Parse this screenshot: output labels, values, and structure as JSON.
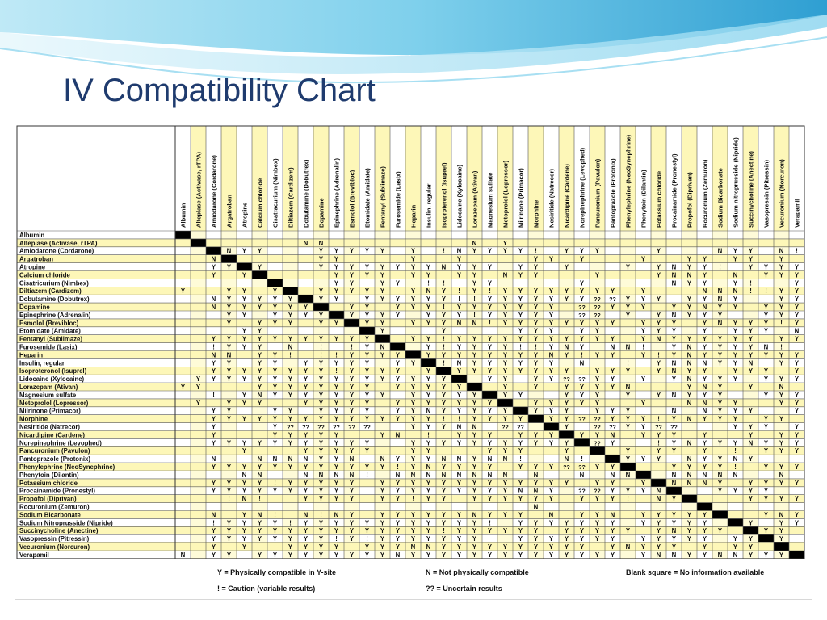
{
  "slide": {
    "title": "IV Compatibility Chart"
  },
  "colors": {
    "title": "#1f3b6e",
    "highlight": "#fdf7b8",
    "diagonal": "#000000",
    "grid": "#555555",
    "banner_light": "#c9ecf7",
    "banner_mid": "#6fc6e6",
    "banner_dark": "#2f9fd2"
  },
  "chart_data": {
    "type": "table",
    "drugs": [
      "Albumin",
      "Alteplase (Activase, rTPA)",
      "Amiodarone (Cordarone)",
      "Argatroban",
      "Atropine",
      "Calcium chloride",
      "Cisatricurium (Nimbex)",
      "Diltiazem (Cardizem)",
      "Dobutamine (Dobutrex)",
      "Dopamine",
      "Epinephrine (Adrenalin)",
      "Esmolol (Brevibloc)",
      "Etomidate (Amidate)",
      "Fentanyl (Sublimaze)",
      "Furosemide (Lasix)",
      "Heparin",
      "Insulin, regular",
      "Isoproteronol (Isuprel)",
      "Lidocaine (Xylocaine)",
      "Lorazepam (Ativan)",
      "Magnesium sulfate",
      "Metoprolol (Lopressor)",
      "Milrinone (Primacor)",
      "Morphine",
      "Nesiritide (Natrecor)",
      "Nicardipine (Cardene)",
      "Norepinephrine (Levophed)",
      "Pancuronium (Pavulon)",
      "Pantoprazole (Protonix)",
      "Phenylephrine (NeoSynephrine)",
      "Phenytoin (Dilantin)",
      "Potassium chloride",
      "Procainamide (Pronestyl)",
      "Propofol (Diprivan)",
      "Rocuronium (Zemuron)",
      "Sodium Bicarbonate",
      "Sodium Nitroprusside (Nipride)",
      "Succinycholine (Anectine)",
      "Vasopressin (Pitressin)",
      "Vecuronium (Norcuron)",
      "Verapamil"
    ],
    "column_labels": [
      "Albumin",
      "Alteplase (Activase, rTPA)",
      "Amiodarone (Cordarone)",
      "Argatroban",
      "Atropine",
      "Calcium chloride",
      "Cisatracurium (Nimbex)",
      "Diltiazem (Cardizem)",
      "Dobutamine (Dobutrex)",
      "Dopamine",
      "Epinephrine (Adrenalin)",
      "Esmolol (Brevibloc)",
      "Etomidate (Amidate)",
      "Fentanyl (Sublimaze)",
      "Furosemide (Lasix)",
      "Heparin",
      "Insulin, regular",
      "Isoproterenol (Isuprel)",
      "Lidocaine (Xylocaine)",
      "Lorazepam (Ativan)",
      "Magnesium sulfate",
      "Metoprolol (Lopressor)",
      "Milrinone (Primacor)",
      "Morphine",
      "Nesiritide (Natrecor)",
      "Nicardipine (Cardene)",
      "Norepinephrine (Levophed)",
      "Pancuronium (Pavulon)",
      "Pantoprazole (Protonix)",
      "Phenylephrine (NeoSynephrine)",
      "Phenytoin (Dilantin)",
      "Potassium chloride",
      "Procainamide (Pronestyl)",
      "Propofol (Diprivan)",
      "Rocuronium (Zemuron)",
      "Sodium Bicarbonate",
      "Sodium nitroprusside (Nipride)",
      "Succinycholine (Anectine)",
      "Vasopressin (Pitressin)",
      "Vecuronium (Norcuron)",
      "Verapamil"
    ],
    "highlighted_columns": [
      1,
      3,
      5,
      7,
      9,
      11,
      13,
      15,
      17,
      19,
      21,
      23,
      25,
      27,
      29,
      31,
      33,
      35,
      37,
      39
    ],
    "highlighted_rows": [
      1,
      3,
      5,
      7,
      9,
      11,
      13,
      15,
      17,
      19,
      21,
      23,
      25,
      27,
      29,
      31,
      33,
      35,
      37,
      39
    ],
    "cells": [
      "..........................................N",
      "........NN.........N.Y....................",
      "...NYY...YYYYY.Y.!NYYYY!.YYY...Y...NYY.N!.YY",
      "..N......YY....Y..Y....YY.Y...Y..YY.YY.Y",
      "..YY.Y...YYYYYYYYNYYY.YY.Y...Y.YNYY!.YYYYY",
      "..Y.Y.....YYYY.YY.YY.NYY...Y...YNNY.N.YYY.Y",
      "......Y...YY.YY.!!.YY.....Y.....NYY.Y!..Y.Y",
      "Y..YY.YY.YYYYY.YNY!Y!YYYYYYYY.Y...NNN!!YYY.YY",
      "..NYYYYY.YY.YYYYYY!!YYYYYYY??YYY.YYNY..YYY!YYY.",
      "..NYYYYYYY.YY.YYY!YYYYYYY.??YYY.YYNYY.YYYYY.",
      "...YY.YYYY.YYYY.YYY!YYYYY.??.Y.YNYYY..YYYY.NYY",
      "...Y.YYY.YYYYY.YYYNN!YYYYYYYY.YYY.YNYYY!Y.YYY",
      "....YY......YY...Y....YYY.YY..YYY.Y.YYY.N",
      "..YYYYYYYYYYYY.YY!YYYYYYYYYYY.YNYYYYYY.YY.Y",
      "..!YYY.N.!.!YNY.Y!YYYY!!YNY.NN!.YNYYYYN!..N",
      "..NN.YY!.!!YYYY.YYYYYYYYNY!YY.Y!YNYYYYYYYY",
      "..YY.YY.YYYYY.YYY!NYYYYYY.N..!.YNNNYYN.YYYY",
      "..YYYYYYYY!YYYY.YYYYYYYYYY.YYY.YNYY.YYY.YN",
      ".YYYYYYYYYYYYYYYYYY.YY.YY??YY.Y.YNYYY.YYYYY.Y",
      "YY...YYYYYYYY.YYYYYY.Y.Y.YYYYN...YNY.Y.N.Y",
      "..!.YNYYYYYYYY.YYYYYYYY..YYY.Y.YNYYY..YYYY",
      ".Y.YYY..YYYYY.YYYYYYYY.YYYYY..Y..NNYY..YYY",
      "..YY..YY.YYYY.YYNYYYYYYYYY.YYY..N.NYYY..YYYY",
      "..YYYYYYYYYYYYYYY!!YYYYYYY??YYY!YNYYY.YY.Y",
      "..Y...Y??????..YYYNN.??.YY.??YY??...YYY.Y",
      "..Y...YYYYY..YN.!.YYY.YYY.YYN.YYY.Y..Y.YY",
      "..YYYYYYYYYYY..YYYYYYYYYYY??Y..!YNYYYNYYY",
      "....Y...YYYYY..YY...YYY..Y...Y.YY.Y.!.YYY",
      "..N..NNNNYYN.NYYYNNYNN!..N!..YYY.NYYNY",
      "..YYYYYYYYYYYY!YNYYYY.YYY??YYY..YYYY!.YYYYY",
      "....NN..NNNN!.NNNNNNNN.N..N.NN..NNNNN..N",
      "..YYYY!YYYYY.YYYYYYYYYYYYY.YY.YYNNNY.YYYY",
      "..YYYYYYYYYY.YYYYYYYYYNNY.??YYYNY..YYYY",
      "...!N!..YYYY.YY!YY.YYYYYY.YYY!.NYY...YYYYN",
      ".......................N..........N......",
      "..N.YN!.N!NY.YYYYYYNYYY.N.YYN.YYYYYY..YNY",
      "..!YYYY!YYYYYYYYYYYY!.YYYYYYY.YYYYY..Y.YYYY",
      "..YYYYYYYYYYYYYYY!YYYYYY.YYYYY.YNYYY.NYY.Y",
      "..YYYYYYYY!Y!YYYYYYY..YYYYYYY.YYYYY.YYYY",
      "..Y.Y..YYYY.YYYNNYYYYYYYYYY.YNYYY.Y.YY.Y",
      "N.YY.YYYYYYYYYNYYYYYYYYYYYYYY.YNNYYNNYYY"
    ],
    "legend": [
      {
        "symbol": "Y",
        "text": "Y = Physically compatible in Y-site"
      },
      {
        "symbol": "N",
        "text": "N = Not physically compatible"
      },
      {
        "symbol": "blank",
        "text": "Blank square = No information available"
      },
      {
        "symbol": "!",
        "text": "! = Caution (variable results)"
      },
      {
        "symbol": "??",
        "text": "?? = Uncertain results"
      }
    ]
  }
}
